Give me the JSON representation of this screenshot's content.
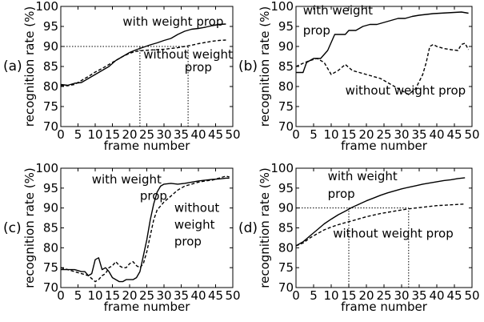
{
  "chart_data": [
    {
      "type": "line",
      "panel_label": "(a)",
      "xlabel": "frame number",
      "ylabel": "recognition rate (%)",
      "xlim": [
        0,
        50
      ],
      "ylim": [
        70,
        100
      ],
      "xticks": [
        "0",
        "5",
        "10",
        "15",
        "20",
        "25",
        "30",
        "35",
        "40",
        "45",
        "50"
      ],
      "yticks": [
        "70",
        "75",
        "80",
        "85",
        "90",
        "95",
        "100"
      ],
      "grid": false,
      "series": [
        {
          "name": "with weight prop",
          "style": "solid",
          "x": [
            0,
            2,
            4,
            6,
            8,
            10,
            12,
            14,
            16,
            18,
            20,
            22,
            24,
            26,
            28,
            30,
            32,
            34,
            36,
            38,
            40,
            42,
            44,
            46,
            48
          ],
          "y": [
            80.5,
            80.3,
            80.8,
            81.0,
            82.0,
            83.0,
            84.0,
            85.0,
            86.5,
            87.5,
            88.5,
            89.2,
            89.8,
            90.4,
            90.9,
            91.5,
            92.0,
            93.0,
            93.8,
            94.3,
            94.5,
            94.8,
            95.2,
            95.5,
            95.6
          ]
        },
        {
          "name": "without weight prop",
          "style": "dashed",
          "x": [
            0,
            2,
            4,
            6,
            8,
            10,
            12,
            14,
            16,
            18,
            20,
            22,
            24,
            26,
            28,
            30,
            32,
            34,
            36,
            38,
            40,
            42,
            44,
            46,
            48
          ],
          "y": [
            80.2,
            80.2,
            80.5,
            81.5,
            82.5,
            83.6,
            84.5,
            85.5,
            86.5,
            87.5,
            88.3,
            88.8,
            89.0,
            89.1,
            89.2,
            89.3,
            89.5,
            89.7,
            90.0,
            90.3,
            90.7,
            91.0,
            91.3,
            91.5,
            91.6
          ]
        }
      ],
      "reference_lines": [
        {
          "style": "dotted",
          "y": 90,
          "x_from": 0,
          "x_to": 37
        },
        {
          "style": "dotted",
          "x": 23,
          "y_from": 70,
          "y_to": 90
        },
        {
          "style": "dotted",
          "x": 37,
          "y_from": 70,
          "y_to": 90
        }
      ],
      "annotations": [
        {
          "text": "with weight prop",
          "x": 18,
          "y": 95.2
        },
        {
          "text": "without weight",
          "x": 24,
          "y": 87.0
        },
        {
          "text": "prop",
          "x": 36,
          "y": 83.8
        }
      ]
    },
    {
      "type": "line",
      "panel_label": "(b)",
      "xlabel": "frame number",
      "ylabel": "recognition rate (%)",
      "xlim": [
        0,
        50
      ],
      "ylim": [
        70,
        100
      ],
      "xticks": [
        "0",
        "5",
        "10",
        "15",
        "20",
        "25",
        "30",
        "35",
        "40",
        "45",
        "50"
      ],
      "yticks": [
        "70",
        "75",
        "80",
        "85",
        "90",
        "95",
        "100"
      ],
      "grid": false,
      "series": [
        {
          "name": "with weight prop",
          "style": "solid",
          "x": [
            0,
            2,
            3,
            5,
            7,
            9,
            11,
            12,
            14,
            15,
            17,
            19,
            21,
            23,
            25,
            27,
            29,
            31,
            33,
            35,
            37,
            39,
            41,
            43,
            45,
            47,
            49
          ],
          "y": [
            83.5,
            83.5,
            86,
            87,
            87,
            89,
            93,
            93,
            93,
            94,
            94,
            95,
            95.5,
            95.5,
            96,
            96.5,
            97,
            97,
            97.5,
            97.8,
            98,
            98.2,
            98.3,
            98.4,
            98.5,
            98.6,
            98.3
          ]
        },
        {
          "name": "without weight prop",
          "style": "dashed",
          "x": [
            0,
            2,
            4,
            6,
            8,
            10,
            12,
            14,
            16,
            18,
            20,
            22,
            24,
            26,
            28,
            30,
            32,
            34,
            36,
            37,
            38,
            39,
            40,
            42,
            44,
            46,
            47,
            48,
            49
          ],
          "y": [
            85.0,
            85.8,
            86.5,
            87.0,
            86.0,
            83.0,
            84.0,
            85.5,
            84.0,
            83.5,
            83.0,
            82.5,
            82.0,
            81.0,
            80.0,
            79.0,
            78.0,
            79.5,
            83.0,
            86.0,
            90.0,
            90.5,
            90.0,
            89.5,
            89.2,
            89.0,
            90.5,
            90.8,
            89.2
          ]
        }
      ],
      "reference_lines": [],
      "annotations": [
        {
          "text": "with weight",
          "x": 2,
          "y": 98.0
        },
        {
          "text": "prop",
          "x": 2,
          "y": 93.0
        },
        {
          "text": "without weight prop",
          "x": 14,
          "y": 78.0
        }
      ]
    },
    {
      "type": "line",
      "panel_label": "(c)",
      "xlabel": "frame number",
      "ylabel": "recognition rate (%)",
      "xlim": [
        0,
        50
      ],
      "ylim": [
        70,
        100
      ],
      "xticks": [
        "0",
        "5",
        "10",
        "15",
        "20",
        "25",
        "30",
        "35",
        "40",
        "45",
        "50"
      ],
      "yticks": [
        "70",
        "75",
        "80",
        "85",
        "90",
        "95",
        "100"
      ],
      "grid": false,
      "series": [
        {
          "name": "with weight prop",
          "style": "solid",
          "x": [
            0,
            2,
            4,
            6,
            7,
            8,
            9,
            10,
            11,
            12,
            13,
            14,
            15,
            16,
            17,
            18,
            19,
            20,
            21,
            22,
            23,
            24,
            25,
            26,
            27,
            28,
            29,
            30,
            32,
            34,
            36,
            38,
            40,
            42,
            44,
            46,
            48,
            49
          ],
          "y": [
            74.5,
            74.5,
            74.5,
            74.0,
            74.0,
            73.0,
            73.5,
            77.0,
            77.5,
            74.5,
            75.0,
            74.0,
            72.5,
            72.0,
            71.5,
            71.5,
            72.0,
            72.0,
            72.0,
            72.5,
            74.0,
            78.0,
            82.0,
            87.0,
            91.0,
            94.0,
            95.5,
            96.0,
            96.2,
            96.0,
            96.2,
            96.5,
            96.8,
            97.0,
            97.2,
            97.3,
            97.5,
            97.5
          ]
        },
        {
          "name": "without weight prop",
          "style": "dashed",
          "x": [
            0,
            2,
            4,
            6,
            8,
            10,
            11,
            12,
            13,
            14,
            15,
            16,
            17,
            18,
            19,
            20,
            21,
            22,
            23,
            24,
            25,
            26,
            27,
            28,
            30,
            32,
            34,
            36,
            38,
            40,
            42,
            44,
            46,
            48,
            49
          ],
          "y": [
            75.0,
            74.5,
            74.0,
            73.5,
            73.0,
            71.5,
            72.0,
            73.0,
            73.5,
            75.0,
            75.5,
            76.5,
            75.5,
            75.0,
            75.0,
            76.0,
            76.5,
            75.5,
            75.0,
            76.0,
            79.0,
            83.0,
            87.0,
            89.5,
            91.5,
            93.0,
            94.5,
            95.5,
            96.0,
            96.5,
            96.8,
            97.0,
            97.5,
            98.0,
            97.8
          ]
        }
      ],
      "reference_lines": [],
      "annotations": [
        {
          "text": "with weight",
          "x": 9,
          "y": 96.2
        },
        {
          "text": "prop",
          "x": 23,
          "y": 92.0
        },
        {
          "text": "without",
          "x": 33,
          "y": 89.0
        },
        {
          "text": "weight",
          "x": 33,
          "y": 84.8
        },
        {
          "text": "prop",
          "x": 33,
          "y": 80.6
        }
      ]
    },
    {
      "type": "line",
      "panel_label": "(d)",
      "xlabel": "frame number",
      "ylabel": "recognition rate (%)",
      "xlim": [
        0,
        50
      ],
      "ylim": [
        70,
        100
      ],
      "xticks": [
        "0",
        "5",
        "10",
        "15",
        "20",
        "25",
        "30",
        "35",
        "40",
        "45",
        "50"
      ],
      "yticks": [
        "70",
        "75",
        "80",
        "85",
        "90",
        "95",
        "100"
      ],
      "grid": false,
      "series": [
        {
          "name": "with weight prop",
          "style": "solid",
          "x": [
            0,
            2,
            4,
            6,
            8,
            10,
            12,
            14,
            16,
            18,
            20,
            22,
            24,
            26,
            28,
            30,
            32,
            34,
            36,
            38,
            40,
            42,
            44,
            46,
            48
          ],
          "y": [
            80.5,
            81.5,
            83.0,
            84.5,
            86.0,
            87.2,
            88.3,
            89.2,
            90.2,
            91.0,
            91.8,
            92.5,
            93.2,
            93.8,
            94.3,
            94.8,
            95.2,
            95.6,
            96.0,
            96.3,
            96.6,
            96.9,
            97.1,
            97.4,
            97.6
          ]
        },
        {
          "name": "without weight prop",
          "style": "dashed",
          "x": [
            0,
            2,
            4,
            6,
            8,
            10,
            12,
            14,
            16,
            18,
            20,
            22,
            24,
            26,
            28,
            30,
            32,
            34,
            36,
            38,
            40,
            42,
            44,
            46,
            48
          ],
          "y": [
            80.5,
            81.2,
            82.5,
            83.5,
            84.5,
            85.2,
            85.8,
            86.3,
            86.8,
            87.3,
            87.8,
            88.2,
            88.6,
            88.9,
            89.2,
            89.5,
            89.8,
            90.0,
            90.2,
            90.4,
            90.6,
            90.7,
            90.8,
            90.9,
            91.0
          ]
        }
      ],
      "reference_lines": [
        {
          "style": "dotted",
          "y": 90,
          "x_from": 0,
          "x_to": 32
        },
        {
          "style": "dotted",
          "x": 15,
          "y_from": 70,
          "y_to": 90
        },
        {
          "style": "dotted",
          "x": 32,
          "y_from": 70,
          "y_to": 90
        }
      ],
      "annotations": [
        {
          "text": "with weight",
          "x": 9,
          "y": 97.0
        },
        {
          "text": "prop",
          "x": 9,
          "y": 92.6
        },
        {
          "text": "without weight prop",
          "x": 10.5,
          "y": 82.6
        }
      ]
    }
  ]
}
